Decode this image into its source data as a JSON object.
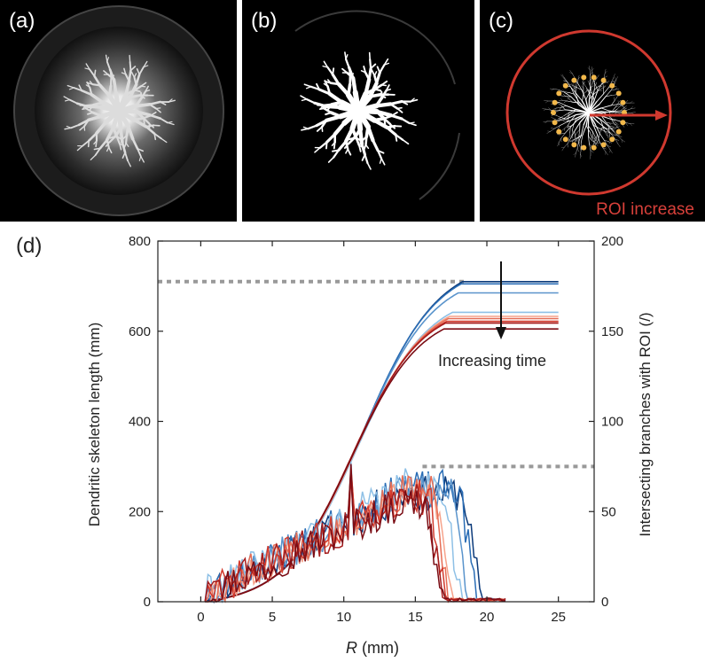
{
  "panels": {
    "a": {
      "label": "(a)"
    },
    "b": {
      "label": "(b)"
    },
    "c": {
      "label": "(c)",
      "caption": "ROI increase"
    },
    "d": {
      "label": "(d)"
    }
  },
  "colors": {
    "roi_ring": "#d0392f",
    "roi_dots": "#f2b84b",
    "reference_line": "#999999",
    "series_blue_dark": "#0b3a7a",
    "series_blue_mid": "#2a6db5",
    "series_blue_light": "#8ec0e6",
    "series_red_light": "#f6a28a",
    "series_red_mid": "#e04a35",
    "series_red_dark": "#7a0c14"
  },
  "chart_data": {
    "type": "line",
    "xlabel_italic": "R",
    "xlabel_unit": " (mm)",
    "ylabel_left": "Dendritic skeleton length (mm)",
    "ylabel_right": "Intersecting branches with ROI (/)",
    "xlim": [
      -3,
      27.5
    ],
    "ylim_left": [
      0,
      800
    ],
    "ylim_right": [
      0,
      200
    ],
    "xticks": [
      0,
      5,
      10,
      15,
      20,
      25
    ],
    "yticks_left": [
      0,
      200,
      400,
      600,
      800
    ],
    "yticks_right": [
      0,
      50,
      100,
      150,
      200
    ],
    "annotation": "Increasing time",
    "reference_lines": [
      {
        "axis": "left",
        "y": 710,
        "x_from": -3,
        "x_to": 18.5
      },
      {
        "axis": "right",
        "y": 75,
        "x_from": 15.5,
        "x_to": 27.5
      }
    ],
    "length_series": [
      {
        "color": "#0b3a7a",
        "plateau": 710,
        "r_end": 18.3
      },
      {
        "color": "#2a6db5",
        "plateau": 705,
        "r_end": 18.2
      },
      {
        "color": "#5a94cc",
        "plateau": 685,
        "r_end": 18.0
      },
      {
        "color": "#8ec0e6",
        "plateau": 642,
        "r_end": 17.6
      },
      {
        "color": "#f6a28a",
        "plateau": 633,
        "r_end": 17.4
      },
      {
        "color": "#e66d55",
        "plateau": 628,
        "r_end": 17.3
      },
      {
        "color": "#d23a2d",
        "plateau": 622,
        "r_end": 17.2
      },
      {
        "color": "#a51d1d",
        "plateau": 618,
        "r_end": 17.1
      },
      {
        "color": "#7a0c14",
        "plateau": 605,
        "r_end": 17.0
      }
    ],
    "branches_series": [
      {
        "color": "#0b3a7a",
        "seed": 11,
        "peak": 60,
        "drop": 19.6
      },
      {
        "color": "#2a6db5",
        "seed": 23,
        "peak": 63,
        "drop": 19.3
      },
      {
        "color": "#5a94cc",
        "seed": 37,
        "peak": 61,
        "drop": 18.8
      },
      {
        "color": "#8ec0e6",
        "seed": 41,
        "peak": 64,
        "drop": 18.2
      },
      {
        "color": "#f6a28a",
        "seed": 53,
        "peak": 59,
        "drop": 17.6
      },
      {
        "color": "#e66d55",
        "seed": 67,
        "peak": 61,
        "drop": 17.4
      },
      {
        "color": "#d23a2d",
        "seed": 71,
        "peak": 58,
        "drop": 17.2
      },
      {
        "color": "#a51d1d",
        "seed": 83,
        "peak": 57,
        "drop": 17.0
      },
      {
        "color": "#7a0c14",
        "seed": 97,
        "peak": 55,
        "drop": 16.9
      }
    ]
  }
}
